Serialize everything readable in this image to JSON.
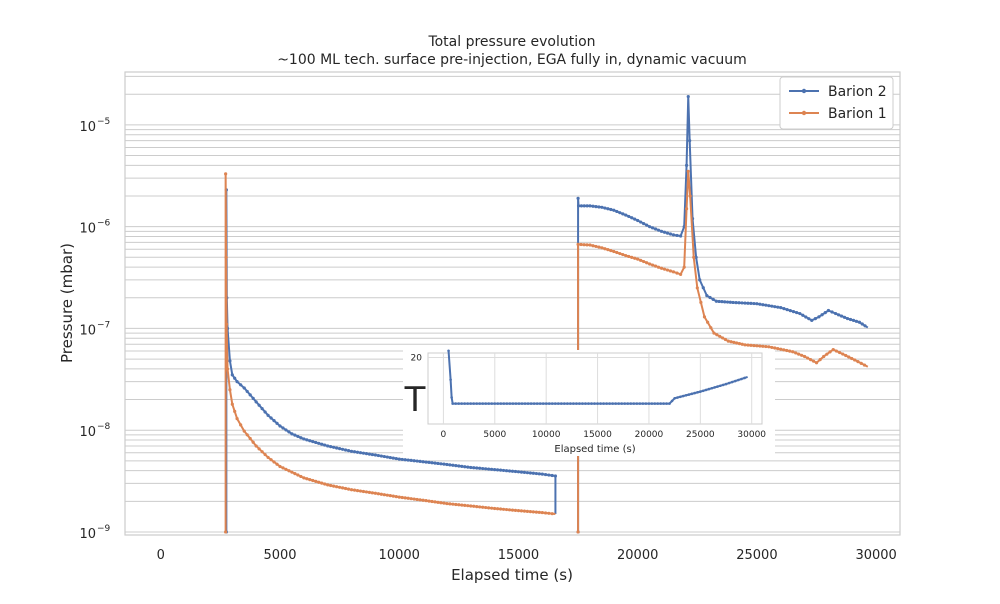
{
  "chart_data": {
    "type": "line",
    "title": "Total pressure evolution",
    "subtitle": "~100 ML tech. surface pre-injection, EGA fully in, dynamic vacuum",
    "xlabel": "Elapsed time (s)",
    "ylabel": "Pressure (mbar)",
    "xscale": "linear",
    "yscale": "log",
    "xlim": [
      -1500,
      31000
    ],
    "ylim_log10": [
      -9.03,
      -4.48
    ],
    "x_ticks": [
      0,
      5000,
      10000,
      15000,
      20000,
      25000,
      30000
    ],
    "x_tick_labels": [
      "0",
      "5000",
      "10000",
      "15000",
      "20000",
      "25000",
      "30000"
    ],
    "y_ticks_log10": [
      -9,
      -8,
      -7,
      -6,
      -5
    ],
    "y_tick_bases": [
      "10",
      "10",
      "10",
      "10",
      "10"
    ],
    "y_tick_exps": [
      "−9",
      "−8",
      "−7",
      "−6",
      "−5"
    ],
    "grid": true,
    "legend_position": "upper right",
    "series": [
      {
        "name": "Barion 2",
        "color": "#4c72b0",
        "segments": [
          [
            [
              2750,
              1e-09
            ],
            [
              2750,
              2.3e-06
            ],
            [
              2770,
              2e-07
            ],
            [
              2800,
              1e-07
            ],
            [
              2900,
              4.8e-08
            ],
            [
              3000,
              3.5e-08
            ],
            [
              3200,
              3e-08
            ],
            [
              3500,
              2.6e-08
            ],
            [
              4000,
              1.9e-08
            ],
            [
              4500,
              1.4e-08
            ],
            [
              5000,
              1.1e-08
            ],
            [
              5500,
              9.2e-09
            ],
            [
              6000,
              8.2e-09
            ],
            [
              7000,
              7e-09
            ],
            [
              8000,
              6.2e-09
            ],
            [
              9000,
              5.7e-09
            ],
            [
              10000,
              5.2e-09
            ],
            [
              11000,
              4.9e-09
            ],
            [
              12000,
              4.6e-09
            ],
            [
              13000,
              4.3e-09
            ],
            [
              14000,
              4.1e-09
            ],
            [
              15000,
              3.9e-09
            ],
            [
              16000,
              3.7e-09
            ],
            [
              16550,
              3.55e-09
            ],
            [
              16550,
              1.5e-09
            ]
          ],
          [
            [
              17500,
              1e-09
            ],
            [
              17500,
              1.9e-06
            ],
            [
              17520,
              1.6e-06
            ],
            [
              18000,
              1.6e-06
            ],
            [
              18500,
              1.55e-06
            ],
            [
              19000,
              1.45e-06
            ],
            [
              19500,
              1.3e-06
            ],
            [
              20000,
              1.15e-06
            ],
            [
              20500,
              1e-06
            ],
            [
              21000,
              9e-07
            ],
            [
              21500,
              8.3e-07
            ],
            [
              21800,
              8.1e-07
            ],
            [
              21950,
              1e-06
            ],
            [
              22050,
              4e-06
            ],
            [
              22120,
              1.9e-05
            ],
            [
              22180,
              7e-06
            ],
            [
              22300,
              1.2e-06
            ],
            [
              22450,
              5e-07
            ],
            [
              22600,
              3e-07
            ],
            [
              22900,
              2.1e-07
            ],
            [
              23300,
              1.85e-07
            ],
            [
              24000,
              1.8e-07
            ],
            [
              25000,
              1.75e-07
            ],
            [
              26000,
              1.6e-07
            ],
            [
              26800,
              1.4e-07
            ],
            [
              27300,
              1.2e-07
            ],
            [
              27600,
              1.3e-07
            ],
            [
              28000,
              1.5e-07
            ],
            [
              28300,
              1.4e-07
            ],
            [
              28800,
              1.25e-07
            ],
            [
              29300,
              1.15e-07
            ],
            [
              29650,
              1.02e-07
            ]
          ]
        ]
      },
      {
        "name": "Barion 1",
        "color": "#dd8452",
        "segments": [
          [
            [
              2720,
              1e-09
            ],
            [
              2720,
              3.3e-06
            ],
            [
              2740,
              5e-07
            ],
            [
              2760,
              1.1e-07
            ],
            [
              2800,
              4e-08
            ],
            [
              2900,
              2.5e-08
            ],
            [
              3000,
              1.8e-08
            ],
            [
              3200,
              1.3e-08
            ],
            [
              3500,
              9.8e-09
            ],
            [
              4000,
              7e-09
            ],
            [
              4500,
              5.4e-09
            ],
            [
              5000,
              4.4e-09
            ],
            [
              6000,
              3.4e-09
            ],
            [
              7000,
              2.9e-09
            ],
            [
              8000,
              2.6e-09
            ],
            [
              9000,
              2.4e-09
            ],
            [
              10000,
              2.2e-09
            ],
            [
              11000,
              2.05e-09
            ],
            [
              12000,
              1.9e-09
            ],
            [
              13000,
              1.8e-09
            ],
            [
              14000,
              1.7e-09
            ],
            [
              15000,
              1.62e-09
            ],
            [
              16000,
              1.55e-09
            ],
            [
              16550,
              1.5e-09
            ]
          ],
          [
            [
              17500,
              1e-09
            ],
            [
              17500,
              6.7e-07
            ],
            [
              18000,
              6.6e-07
            ],
            [
              18500,
              6.2e-07
            ],
            [
              19000,
              5.7e-07
            ],
            [
              19500,
              5.2e-07
            ],
            [
              20000,
              4.8e-07
            ],
            [
              20500,
              4.3e-07
            ],
            [
              21000,
              3.9e-07
            ],
            [
              21500,
              3.6e-07
            ],
            [
              21800,
              3.4e-07
            ],
            [
              21950,
              4e-07
            ],
            [
              22050,
              1.5e-06
            ],
            [
              22120,
              3.5e-06
            ],
            [
              22200,
              2e-06
            ],
            [
              22350,
              5e-07
            ],
            [
              22500,
              2.5e-07
            ],
            [
              22800,
              1.3e-07
            ],
            [
              23200,
              9e-08
            ],
            [
              23800,
              7.5e-08
            ],
            [
              24500,
              6.9e-08
            ],
            [
              25500,
              6.6e-08
            ],
            [
              26500,
              5.9e-08
            ],
            [
              27000,
              5.3e-08
            ],
            [
              27500,
              4.6e-08
            ],
            [
              27800,
              5.3e-08
            ],
            [
              28200,
              6.2e-08
            ],
            [
              28600,
              5.6e-08
            ],
            [
              29100,
              4.9e-08
            ],
            [
              29650,
              4.2e-08
            ]
          ]
        ]
      }
    ],
    "inset": {
      "xlabel": "Elapsed time (s)",
      "x_ticks": [
        0,
        5000,
        10000,
        15000,
        20000,
        25000,
        30000
      ],
      "x_tick_labels": [
        "0",
        "5000",
        "10000",
        "15000",
        "20000",
        "25000",
        "30000"
      ],
      "xlim": [
        -1500,
        31000
      ],
      "ylim": [
        5,
        21
      ],
      "y_ticks": [
        20
      ],
      "y_tick_labels": [
        "20"
      ],
      "y_label_glyph": "T",
      "series": {
        "color": "#4c72b0",
        "points": [
          [
            500,
            21.5
          ],
          [
            700,
            15
          ],
          [
            800,
            11
          ],
          [
            900,
            9.6
          ],
          [
            5000,
            9.6
          ],
          [
            10000,
            9.6
          ],
          [
            15000,
            9.6
          ],
          [
            20000,
            9.6
          ],
          [
            22000,
            9.6
          ],
          [
            22500,
            10.8
          ],
          [
            25000,
            12.3
          ],
          [
            27500,
            14
          ],
          [
            29600,
            15.6
          ]
        ]
      }
    }
  }
}
